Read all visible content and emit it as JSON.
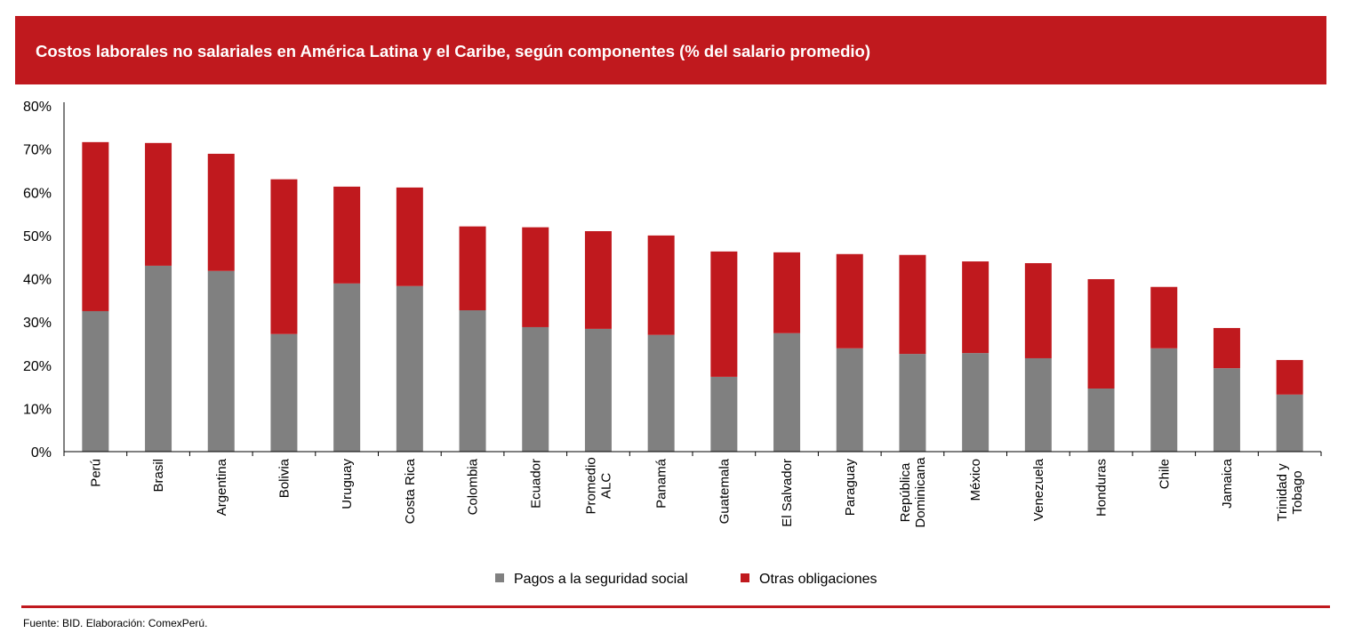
{
  "title": "Costos laborales no salariales en América Latina y el Caribe, según componentes (% del salario promedio)",
  "source": "Fuente: BID. Elaboración: ComexPerú.",
  "colors": {
    "brand": "#C0191E",
    "seguridad": "#808080",
    "otras": "#C0191E"
  },
  "chart_data": {
    "type": "bar",
    "stacked": true,
    "title": "Costos laborales no salariales en América Latina y el Caribe, según componentes (% del salario promedio)",
    "xlabel": "",
    "ylabel": "",
    "ylim": [
      0,
      80
    ],
    "yticks": [
      "0%",
      "10%",
      "20%",
      "30%",
      "40%",
      "50%",
      "60%",
      "70%",
      "80%"
    ],
    "legend_position": "bottom",
    "categories": [
      [
        "Perú"
      ],
      [
        "Brasil"
      ],
      [
        "Argentina"
      ],
      [
        "Bolivia"
      ],
      [
        "Uruguay"
      ],
      [
        "Costa Rica"
      ],
      [
        "Colombia"
      ],
      [
        "Ecuador"
      ],
      [
        "Promedio",
        "ALC"
      ],
      [
        "Panamá"
      ],
      [
        "Guatemala"
      ],
      [
        "El Salvador"
      ],
      [
        "Paraguay"
      ],
      [
        "República",
        "Dominicana"
      ],
      [
        "México"
      ],
      [
        "Venezuela"
      ],
      [
        "Honduras"
      ],
      [
        "Chile"
      ],
      [
        "Jamaica"
      ],
      [
        "Trinidad y",
        "Tobago"
      ]
    ],
    "series": [
      {
        "name": "Pagos a la seguridad social",
        "color": "#808080",
        "values": [
          32.5,
          43.0,
          41.8,
          27.2,
          38.9,
          38.3,
          32.7,
          28.8,
          28.4,
          27.0,
          17.3,
          27.4,
          23.9,
          22.6,
          22.8,
          21.6,
          14.6,
          23.9,
          19.3,
          13.2
        ]
      },
      {
        "name": "Otras obligaciones",
        "color": "#C0191E",
        "values": [
          39.1,
          28.4,
          27.1,
          35.8,
          22.4,
          22.8,
          19.4,
          23.1,
          22.6,
          23.0,
          29.0,
          18.7,
          21.8,
          22.9,
          21.2,
          22.0,
          25.3,
          14.2,
          9.3,
          8.0
        ]
      }
    ]
  }
}
